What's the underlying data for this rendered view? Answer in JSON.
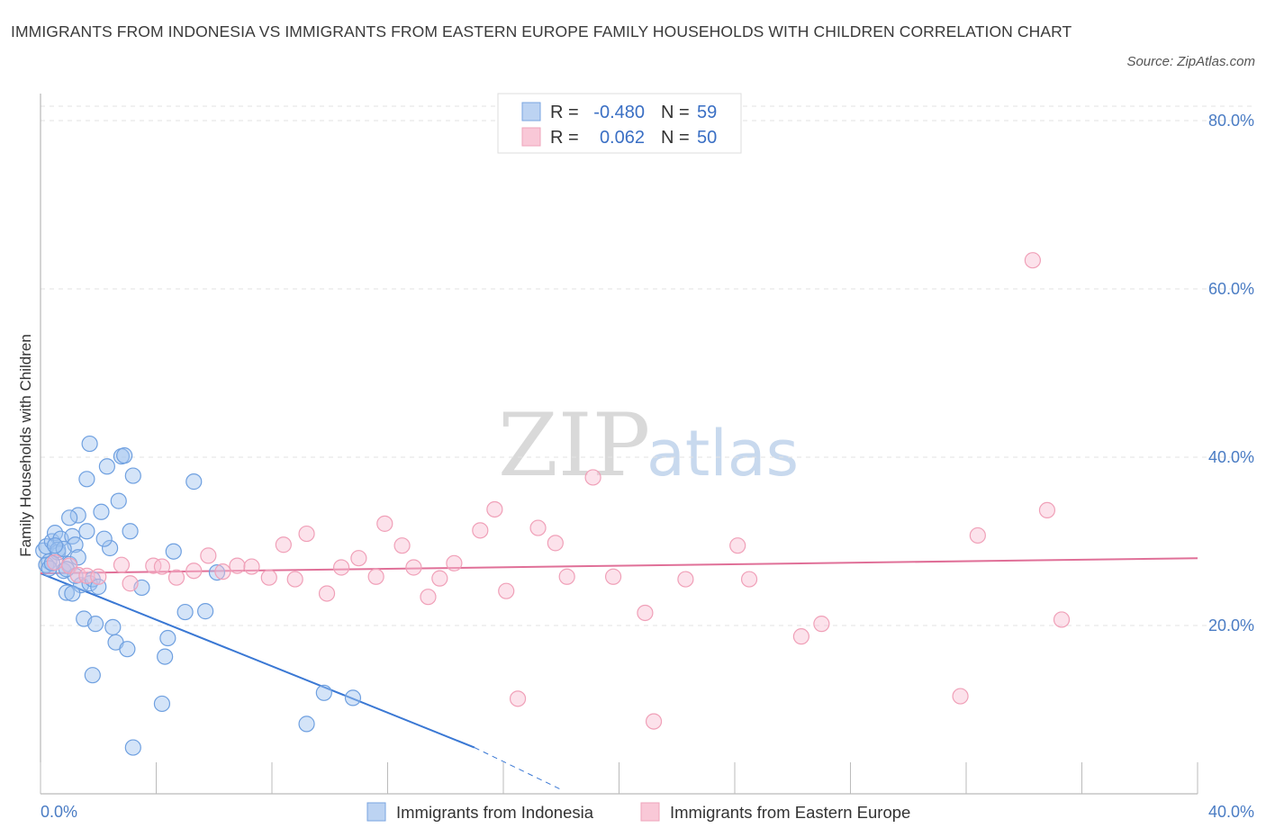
{
  "title": "IMMIGRANTS FROM INDONESIA VS IMMIGRANTS FROM EASTERN EUROPE FAMILY HOUSEHOLDS WITH CHILDREN CORRELATION CHART",
  "source": "Source: ZipAtlas.com",
  "watermark": {
    "zip": "ZIP",
    "atlas": "atlas"
  },
  "legend_top": {
    "rows": [
      {
        "r_label": "R =",
        "r_value": "-0.480",
        "n_label": "N =",
        "n_value": "59"
      },
      {
        "r_label": "R =",
        "r_value": "0.062",
        "n_label": "N =",
        "n_value": "50"
      }
    ]
  },
  "legend_bottom": [
    "Immigrants from Indonesia",
    "Immigrants from Eastern Europe"
  ],
  "colors": {
    "blue": "#6fa0e0",
    "blue_line": "#3a78d4",
    "pink": "#f0a0b8",
    "pink_line": "#e07098"
  },
  "chart_data": {
    "type": "scatter",
    "title": "IMMIGRANTS FROM INDONESIA VS IMMIGRANTS FROM EASTERN EUROPE FAMILY HOUSEHOLDS WITH CHILDREN CORRELATION CHART",
    "xlabel": "",
    "ylabel": "Family Households with Children",
    "xlim": [
      0,
      40
    ],
    "ylim": [
      0,
      80
    ],
    "x_tick_labels": [
      "0.0%",
      "40.0%"
    ],
    "y_ticks": [
      20,
      40,
      60,
      80
    ],
    "y_tick_labels": [
      "20.0%",
      "40.0%",
      "60.0%",
      "80.0%"
    ],
    "series": [
      {
        "name": "Immigrants from Indonesia",
        "color": "#6fa0e0",
        "r": -0.48,
        "n": 59,
        "trend": {
          "x0": 0,
          "y0": 26.2,
          "x1": 15,
          "y1": 5.5,
          "dashed_to_x": 18,
          "dashed_to_y": 0.5
        },
        "points": [
          [
            0.1,
            28.9
          ],
          [
            0.2,
            29.4
          ],
          [
            0.3,
            27.6
          ],
          [
            0.2,
            27.2
          ],
          [
            0.4,
            30.0
          ],
          [
            0.5,
            31.0
          ],
          [
            0.6,
            28.7
          ],
          [
            0.7,
            30.3
          ],
          [
            0.8,
            26.5
          ],
          [
            0.9,
            23.9
          ],
          [
            1.0,
            27.3
          ],
          [
            1.1,
            30.6
          ],
          [
            1.2,
            29.6
          ],
          [
            1.3,
            28.1
          ],
          [
            1.4,
            24.8
          ],
          [
            1.5,
            20.8
          ],
          [
            1.6,
            31.2
          ],
          [
            1.7,
            25.0
          ],
          [
            1.8,
            25.5
          ],
          [
            1.9,
            20.2
          ],
          [
            2.0,
            24.6
          ],
          [
            2.1,
            33.5
          ],
          [
            2.3,
            38.9
          ],
          [
            2.4,
            29.2
          ],
          [
            2.5,
            19.8
          ],
          [
            2.6,
            18.0
          ],
          [
            2.7,
            34.8
          ],
          [
            2.8,
            40.1
          ],
          [
            2.9,
            40.2
          ],
          [
            3.0,
            17.2
          ],
          [
            3.1,
            31.2
          ],
          [
            3.2,
            37.8
          ],
          [
            1.6,
            37.4
          ],
          [
            1.8,
            14.1
          ],
          [
            1.7,
            41.6
          ],
          [
            1.3,
            33.1
          ],
          [
            1.0,
            32.8
          ],
          [
            0.6,
            29.0
          ],
          [
            0.8,
            29.1
          ],
          [
            0.3,
            26.8
          ],
          [
            3.2,
            5.5
          ],
          [
            3.5,
            24.5
          ],
          [
            4.2,
            10.7
          ],
          [
            4.3,
            16.3
          ],
          [
            4.4,
            18.5
          ],
          [
            4.6,
            28.8
          ],
          [
            5.0,
            21.6
          ],
          [
            5.3,
            37.1
          ],
          [
            5.7,
            21.7
          ],
          [
            6.1,
            26.3
          ],
          [
            9.2,
            8.3
          ],
          [
            9.8,
            12.0
          ],
          [
            10.8,
            11.4
          ],
          [
            1.1,
            23.8
          ],
          [
            0.5,
            29.5
          ],
          [
            1.2,
            25.9
          ],
          [
            2.2,
            30.3
          ],
          [
            0.9,
            26.7
          ],
          [
            0.4,
            27.4
          ]
        ]
      },
      {
        "name": "Immigrants from Eastern Europe",
        "color": "#f0a0b8",
        "r": 0.062,
        "n": 50,
        "trend": {
          "x0": 0,
          "y0": 26.2,
          "x1": 40,
          "y1": 28.0
        },
        "points": [
          [
            0.5,
            27.5
          ],
          [
            1.0,
            27.1
          ],
          [
            1.3,
            26.0
          ],
          [
            1.6,
            25.9
          ],
          [
            2.0,
            25.8
          ],
          [
            2.8,
            27.2
          ],
          [
            3.1,
            25.0
          ],
          [
            3.9,
            27.1
          ],
          [
            4.2,
            27.0
          ],
          [
            4.7,
            25.7
          ],
          [
            5.3,
            26.5
          ],
          [
            5.8,
            28.3
          ],
          [
            6.3,
            26.4
          ],
          [
            6.8,
            27.1
          ],
          [
            7.3,
            27.0
          ],
          [
            7.9,
            25.7
          ],
          [
            8.4,
            29.6
          ],
          [
            8.8,
            25.5
          ],
          [
            9.2,
            30.9
          ],
          [
            9.9,
            23.8
          ],
          [
            10.4,
            26.9
          ],
          [
            11.0,
            28.0
          ],
          [
            11.6,
            25.8
          ],
          [
            11.9,
            32.1
          ],
          [
            12.5,
            29.5
          ],
          [
            12.9,
            26.9
          ],
          [
            13.4,
            23.4
          ],
          [
            13.8,
            25.6
          ],
          [
            14.3,
            27.4
          ],
          [
            15.2,
            31.3
          ],
          [
            15.7,
            33.8
          ],
          [
            16.1,
            24.1
          ],
          [
            16.5,
            11.3
          ],
          [
            17.2,
            31.6
          ],
          [
            17.8,
            29.8
          ],
          [
            18.2,
            25.8
          ],
          [
            19.1,
            37.6
          ],
          [
            19.8,
            25.8
          ],
          [
            20.9,
            21.5
          ],
          [
            21.2,
            8.6
          ],
          [
            22.3,
            25.5
          ],
          [
            24.1,
            29.5
          ],
          [
            24.5,
            25.5
          ],
          [
            26.3,
            18.7
          ],
          [
            27.0,
            20.2
          ],
          [
            31.8,
            11.6
          ],
          [
            32.4,
            30.7
          ],
          [
            34.3,
            63.4
          ],
          [
            34.8,
            33.7
          ],
          [
            35.3,
            20.7
          ]
        ]
      }
    ]
  }
}
